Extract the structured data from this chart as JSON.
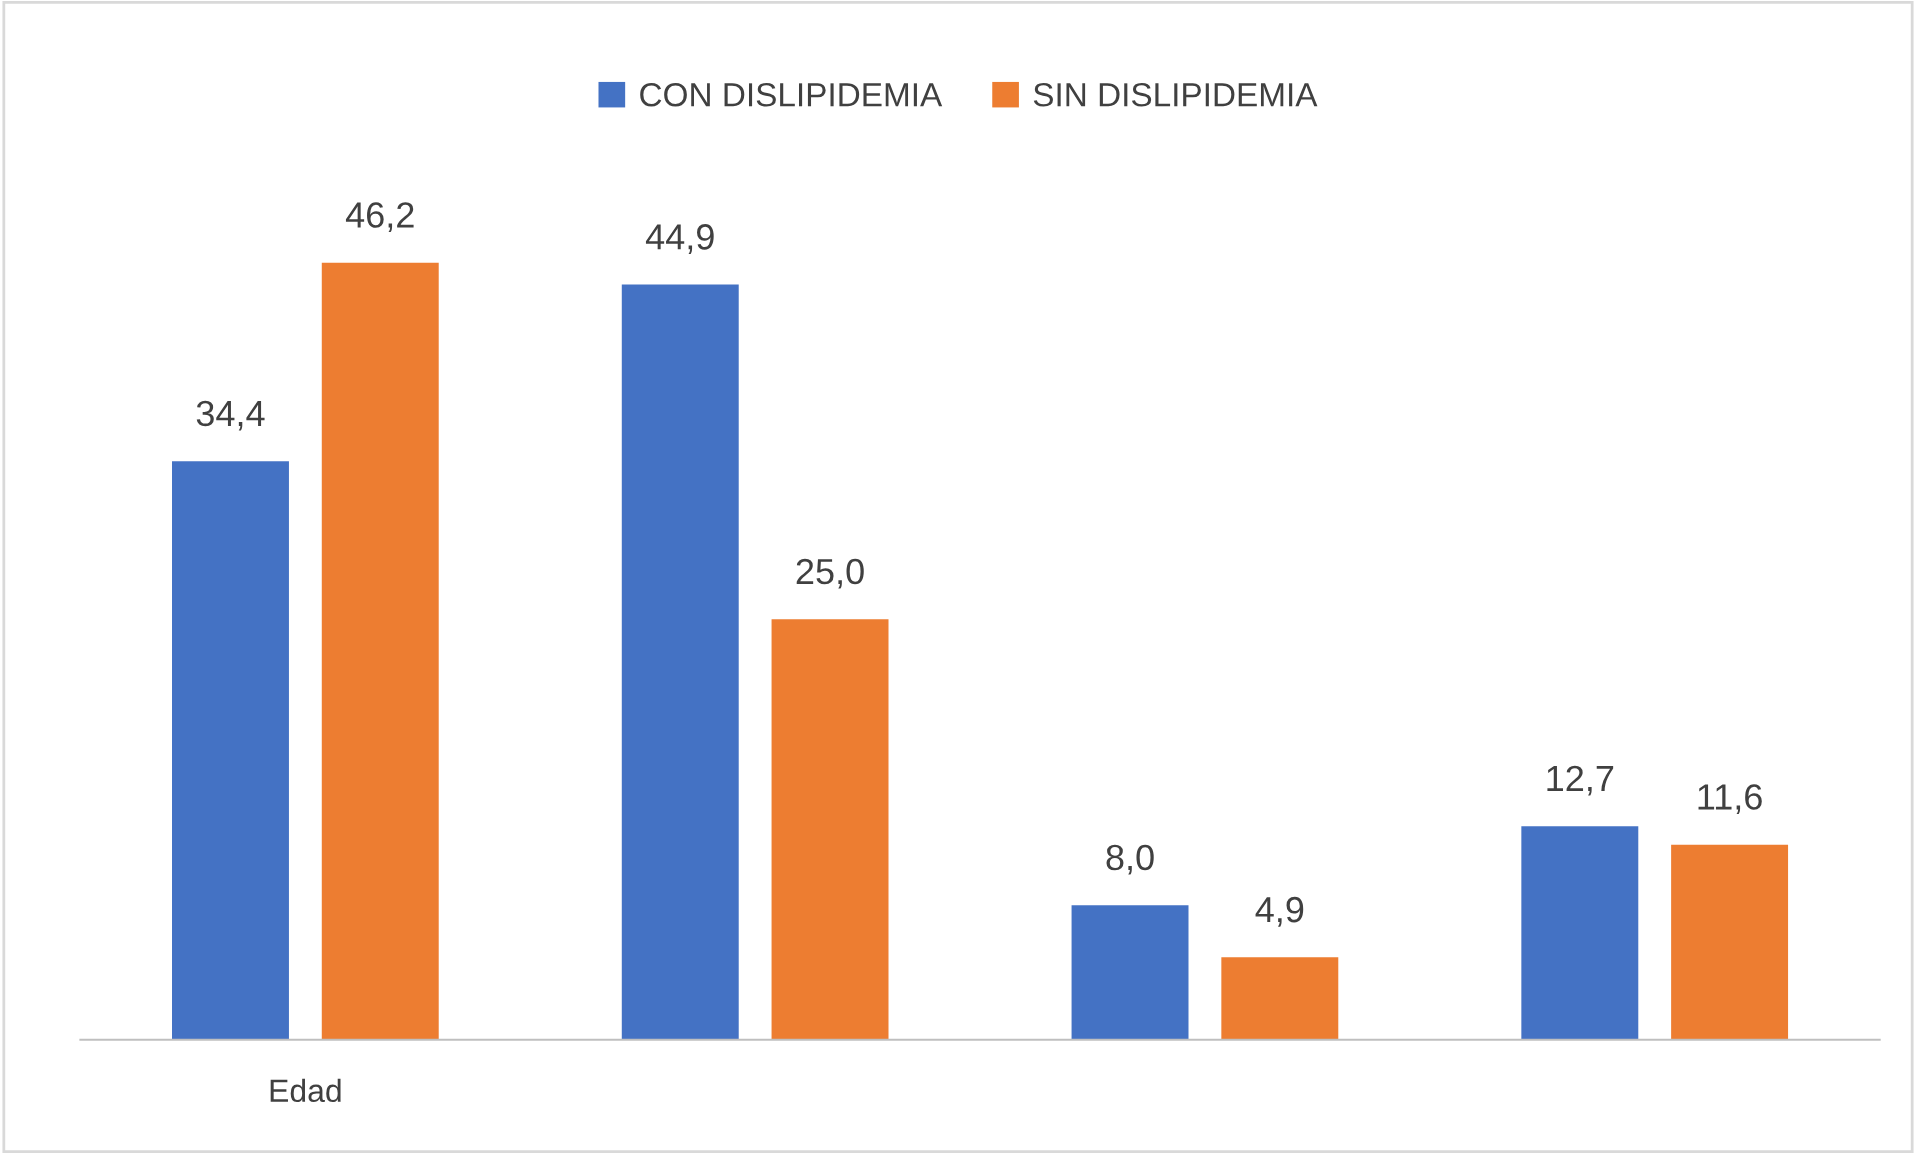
{
  "chart_data": {
    "type": "bar",
    "categories": [
      "Edad",
      null,
      null,
      null
    ],
    "series": [
      {
        "name": "CON DISLIPIDEMIA",
        "color": "#4472c4",
        "values": [
          34.4,
          44.9,
          8.0,
          12.7
        ],
        "value_labels": [
          "34,4",
          "44,9",
          "8,0",
          "12,7"
        ]
      },
      {
        "name": "SIN DISLIPIDEMIA",
        "color": "#ed7d31",
        "values": [
          46.2,
          25.0,
          4.9,
          11.6
        ],
        "value_labels": [
          "46,2",
          "25,0",
          "4,9",
          "11,6"
        ]
      }
    ],
    "legend": "top",
    "grid": false
  }
}
